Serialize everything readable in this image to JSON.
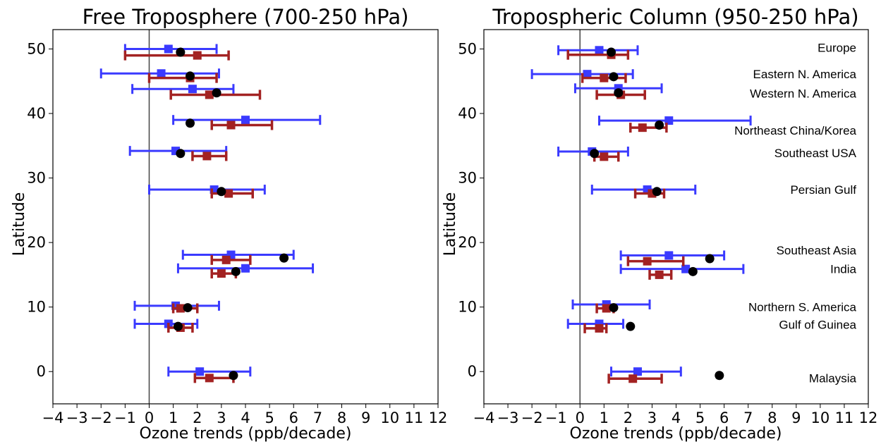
{
  "colors": {
    "blue": "#3a3aff",
    "red": "#a32222",
    "black": "#000000"
  },
  "chart_data": [
    {
      "type": "scatter",
      "title": "Free Troposphere (700-250 hPa)",
      "xlabel": "Ozone trends (ppb/decade)",
      "ylabel": "Latitude",
      "xlim": [
        -4,
        12
      ],
      "ylim": [
        -5,
        53
      ],
      "xticks": [
        "−4",
        "−3",
        "−2",
        "−1",
        "0",
        "1",
        "2",
        "3",
        "4",
        "5",
        "6",
        "7",
        "8",
        "9",
        "10",
        "11",
        "12"
      ],
      "yticks": [
        "0",
        "10",
        "20",
        "30",
        "40",
        "50"
      ],
      "vline_x": 0,
      "grid": false,
      "series": [
        {
          "marker": "square",
          "color": "blue",
          "points": [
            {
              "y": 50.0,
              "x": 0.8,
              "lo": -1.0,
              "hi": 2.8
            },
            {
              "y": 46.2,
              "x": 0.5,
              "lo": -2.0,
              "hi": 2.9
            },
            {
              "y": 43.8,
              "x": 1.8,
              "lo": -0.7,
              "hi": 3.5
            },
            {
              "y": 39.0,
              "x": 4.0,
              "lo": 1.0,
              "hi": 7.1
            },
            {
              "y": 34.2,
              "x": 1.1,
              "lo": -0.8,
              "hi": 3.2
            },
            {
              "y": 28.2,
              "x": 2.7,
              "lo": 0.0,
              "hi": 4.8
            },
            {
              "y": 18.1,
              "x": 3.4,
              "lo": 1.4,
              "hi": 6.0
            },
            {
              "y": 16.0,
              "x": 4.0,
              "lo": 1.2,
              "hi": 6.8
            },
            {
              "y": 10.2,
              "x": 1.1,
              "lo": -0.6,
              "hi": 2.9
            },
            {
              "y": 7.4,
              "x": 0.8,
              "lo": -0.6,
              "hi": 2.0
            },
            {
              "y": 0.0,
              "x": 2.1,
              "lo": 0.8,
              "hi": 4.2
            }
          ]
        },
        {
          "marker": "square",
          "color": "red",
          "points": [
            {
              "y": 49.0,
              "x": 2.0,
              "lo": -1.0,
              "hi": 3.3
            },
            {
              "y": 45.5,
              "x": 1.7,
              "lo": 0.0,
              "hi": 2.8
            },
            {
              "y": 42.9,
              "x": 2.5,
              "lo": 0.9,
              "hi": 4.6
            },
            {
              "y": 38.2,
              "x": 3.4,
              "lo": 2.6,
              "hi": 5.1
            },
            {
              "y": 33.4,
              "x": 2.4,
              "lo": 1.8,
              "hi": 3.2
            },
            {
              "y": 27.6,
              "x": 3.3,
              "lo": 2.6,
              "hi": 4.3
            },
            {
              "y": 17.3,
              "x": 3.2,
              "lo": 2.6,
              "hi": 4.2
            },
            {
              "y": 15.2,
              "x": 3.0,
              "lo": 2.6,
              "hi": 3.6
            },
            {
              "y": 9.8,
              "x": 1.3,
              "lo": 1.0,
              "hi": 2.0
            },
            {
              "y": 6.8,
              "x": 1.3,
              "lo": 0.8,
              "hi": 1.8
            },
            {
              "y": -1.0,
              "x": 2.5,
              "lo": 1.9,
              "hi": 3.5
            }
          ]
        },
        {
          "marker": "circle",
          "color": "black",
          "points": [
            {
              "y": 49.5,
              "x": 1.3
            },
            {
              "y": 45.8,
              "x": 1.7
            },
            {
              "y": 43.2,
              "x": 2.8
            },
            {
              "y": 38.5,
              "x": 1.7
            },
            {
              "y": 33.8,
              "x": 1.3
            },
            {
              "y": 27.9,
              "x": 3.0
            },
            {
              "y": 17.6,
              "x": 5.6
            },
            {
              "y": 15.5,
              "x": 3.6
            },
            {
              "y": 9.9,
              "x": 1.6
            },
            {
              "y": 7.0,
              "x": 1.2
            },
            {
              "y": -0.6,
              "x": 3.5
            }
          ]
        }
      ]
    },
    {
      "type": "scatter",
      "title": "Tropospheric Column (950-250 hPa)",
      "xlabel": "Ozone trends (ppb/decade)",
      "ylabel": "Latitude",
      "xlim": [
        -4,
        12
      ],
      "ylim": [
        -5,
        53
      ],
      "xticks": [
        "−4",
        "−3",
        "−2",
        "−1",
        "0",
        "1",
        "2",
        "3",
        "4",
        "5",
        "6",
        "7",
        "8",
        "9",
        "10",
        "11",
        "12"
      ],
      "yticks": [
        "0",
        "10",
        "20",
        "30",
        "40",
        "50"
      ],
      "vline_x": 0,
      "grid": false,
      "annotations": [
        {
          "text": "Europe",
          "y": 50.2
        },
        {
          "text": "Eastern N. America",
          "y": 46.1
        },
        {
          "text": "Western N. America",
          "y": 43.1
        },
        {
          "text": "Northeast China/Korea",
          "y": 37.4
        },
        {
          "text": "Southeast USA",
          "y": 33.9
        },
        {
          "text": "Persian Gulf",
          "y": 28.2
        },
        {
          "text": "Southeast Asia",
          "y": 18.8
        },
        {
          "text": "India",
          "y": 15.9
        },
        {
          "text": "Northern S. America",
          "y": 10.0
        },
        {
          "text": "Gulf of Guinea",
          "y": 7.3
        },
        {
          "text": "Malaysia",
          "y": -1.0
        }
      ],
      "series": [
        {
          "marker": "square",
          "color": "blue",
          "points": [
            {
              "y": 49.8,
              "x": 0.8,
              "lo": -0.9,
              "hi": 2.4
            },
            {
              "y": 46.1,
              "x": 0.3,
              "lo": -2.0,
              "hi": 2.2
            },
            {
              "y": 43.9,
              "x": 1.6,
              "lo": -0.2,
              "hi": 3.4
            },
            {
              "y": 38.9,
              "x": 3.7,
              "lo": 0.8,
              "hi": 7.1
            },
            {
              "y": 34.1,
              "x": 0.5,
              "lo": -0.9,
              "hi": 2.0
            },
            {
              "y": 28.2,
              "x": 2.8,
              "lo": 0.5,
              "hi": 4.8
            },
            {
              "y": 18.0,
              "x": 3.7,
              "lo": 1.7,
              "hi": 6.0
            },
            {
              "y": 15.9,
              "x": 4.4,
              "lo": 1.7,
              "hi": 6.8
            },
            {
              "y": 10.4,
              "x": 1.1,
              "lo": -0.3,
              "hi": 2.9
            },
            {
              "y": 7.4,
              "x": 0.8,
              "lo": -0.5,
              "hi": 1.8
            },
            {
              "y": 0.0,
              "x": 2.4,
              "lo": 1.3,
              "hi": 4.2
            }
          ]
        },
        {
          "marker": "square",
          "color": "red",
          "points": [
            {
              "y": 49.1,
              "x": 1.3,
              "lo": -0.5,
              "hi": 2.0
            },
            {
              "y": 45.5,
              "x": 1.0,
              "lo": 0.1,
              "hi": 1.9
            },
            {
              "y": 42.9,
              "x": 1.7,
              "lo": 0.7,
              "hi": 2.7
            },
            {
              "y": 37.8,
              "x": 2.6,
              "lo": 2.1,
              "hi": 3.6
            },
            {
              "y": 33.3,
              "x": 1.0,
              "lo": 0.6,
              "hi": 1.6
            },
            {
              "y": 27.6,
              "x": 3.0,
              "lo": 2.3,
              "hi": 3.5
            },
            {
              "y": 17.1,
              "x": 2.8,
              "lo": 2.0,
              "hi": 4.3
            },
            {
              "y": 15.0,
              "x": 3.3,
              "lo": 2.9,
              "hi": 3.8
            },
            {
              "y": 9.8,
              "x": 1.1,
              "lo": 0.7,
              "hi": 1.4
            },
            {
              "y": 6.7,
              "x": 0.8,
              "lo": 0.2,
              "hi": 1.1
            },
            {
              "y": -1.1,
              "x": 2.2,
              "lo": 1.2,
              "hi": 3.4
            }
          ]
        },
        {
          "marker": "circle",
          "color": "black",
          "points": [
            {
              "y": 49.5,
              "x": 1.3
            },
            {
              "y": 45.7,
              "x": 1.4
            },
            {
              "y": 43.2,
              "x": 1.6
            },
            {
              "y": 38.2,
              "x": 3.3
            },
            {
              "y": 33.8,
              "x": 0.6
            },
            {
              "y": 27.9,
              "x": 3.2
            },
            {
              "y": 17.5,
              "x": 5.4
            },
            {
              "y": 15.5,
              "x": 4.7
            },
            {
              "y": 9.9,
              "x": 1.4
            },
            {
              "y": 7.0,
              "x": 2.1
            },
            {
              "y": -0.6,
              "x": 5.8
            }
          ]
        }
      ]
    }
  ]
}
